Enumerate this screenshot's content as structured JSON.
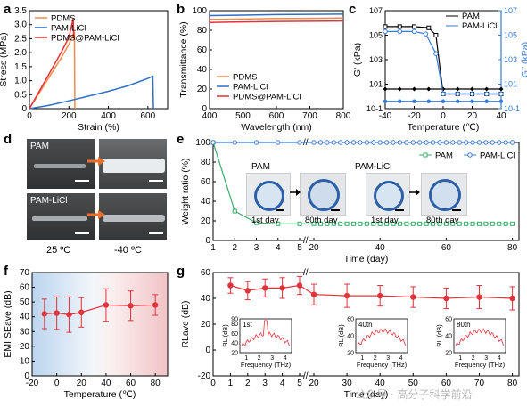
{
  "panels": {
    "a": "a",
    "b": "b",
    "c": "c",
    "d": "d",
    "e": "e",
    "f": "f",
    "g": "g"
  },
  "chart_data": [
    {
      "panel": "a",
      "type": "line",
      "xlabel": "Strain (%)",
      "ylabel": "Stress (MPa)",
      "xlim": [
        0,
        700
      ],
      "ylim": [
        0,
        3.5
      ],
      "xticks": [
        0,
        200,
        400,
        600
      ],
      "yticks": [
        0,
        0.5,
        1.0,
        1.5,
        2.0,
        2.5,
        3.0,
        3.5
      ],
      "ytick_labels": [
        "0",
        "0.5",
        "1.0",
        "1.5",
        "2.0",
        "2.5",
        "3.0",
        "3.5"
      ],
      "legend": [
        "PDMS",
        "PAM-LiCl",
        "PDMS@PAM-LiCl"
      ],
      "legend_position": "top-left",
      "series": [
        {
          "name": "PDMS",
          "color": "#f08c4a",
          "points": [
            [
              0,
              0
            ],
            [
              40,
              0.45
            ],
            [
              80,
              0.9
            ],
            [
              120,
              1.35
            ],
            [
              160,
              1.8
            ],
            [
              200,
              2.3
            ],
            [
              228,
              2.75
            ],
            [
              230,
              0
            ]
          ]
        },
        {
          "name": "PAM-LiCl",
          "color": "#2f6fc6",
          "points": [
            [
              0,
              0
            ],
            [
              100,
              0.12
            ],
            [
              200,
              0.28
            ],
            [
              300,
              0.45
            ],
            [
              400,
              0.62
            ],
            [
              500,
              0.82
            ],
            [
              600,
              1.08
            ],
            [
              625,
              1.16
            ],
            [
              628,
              0
            ]
          ]
        },
        {
          "name": "PDMS@PAM-LiCl",
          "color": "#e0343b",
          "points": [
            [
              0,
              0
            ],
            [
              40,
              0.5
            ],
            [
              80,
              1.0
            ],
            [
              120,
              1.5
            ],
            [
              160,
              2.0
            ],
            [
              200,
              2.55
            ],
            [
              222,
              3.22
            ],
            [
              224,
              2.5
            ]
          ]
        }
      ]
    },
    {
      "panel": "b",
      "type": "line",
      "xlabel": "Wavelength (nm)",
      "ylabel": "Transmittance (%)",
      "xlim": [
        400,
        800
      ],
      "ylim": [
        0,
        100
      ],
      "xticks": [
        400,
        500,
        600,
        700,
        800
      ],
      "yticks": [
        0,
        20,
        40,
        60,
        80,
        100
      ],
      "legend": [
        "PDMS",
        "PAM-LiCl",
        "PDMS@PAM-LiCl"
      ],
      "legend_position": "bottom-left",
      "series": [
        {
          "name": "PDMS",
          "color": "#f08c4a",
          "x": [
            400,
            500,
            600,
            700,
            800
          ],
          "y": [
            91,
            91.5,
            92,
            92.2,
            92.5
          ]
        },
        {
          "name": "PAM-LiCl",
          "color": "#2f6fc6",
          "x": [
            400,
            500,
            600,
            700,
            800
          ],
          "y": [
            95,
            95.5,
            96,
            96.3,
            96.5
          ]
        },
        {
          "name": "PDMS@PAM-LiCl",
          "color": "#e0343b",
          "x": [
            400,
            500,
            600,
            700,
            800
          ],
          "y": [
            88,
            88.5,
            89,
            89.2,
            89.5
          ]
        }
      ]
    },
    {
      "panel": "c",
      "type": "line",
      "xlabel": "Temperature (℃)",
      "ylabel": "G' (kPa)",
      "ylabel_right": "G'' (kPa)",
      "xlim": [
        -40,
        40
      ],
      "ylim_log": [
        -1,
        7
      ],
      "yscale": "log",
      "xticks": [
        -40,
        -20,
        0,
        20,
        40
      ],
      "yticks_left": [
        "10-1",
        "101",
        "103",
        "105",
        "107"
      ],
      "yticks_right": [
        "10-1",
        "101",
        "103",
        "105",
        "107"
      ],
      "legend": [
        "PAM",
        "PAM-LiCl"
      ],
      "legend_position": "top-right",
      "series": [
        {
          "name": "PAM G'",
          "color": "#000000",
          "marker": "open-square",
          "x": [
            -40,
            -30,
            -20,
            -10,
            -5,
            0,
            10,
            20,
            30,
            40
          ],
          "logy": [
            5.7,
            5.7,
            5.7,
            5.6,
            5.0,
            0.2,
            0.2,
            0.2,
            0.2,
            0.2
          ]
        },
        {
          "name": "PAM G''",
          "color": "#000000",
          "marker": "filled-diamond",
          "x": [
            -40,
            -30,
            -20,
            -10,
            0,
            10,
            20,
            30,
            40
          ],
          "logy": [
            0.6,
            0.6,
            0.6,
            0.6,
            0.6,
            0.6,
            0.6,
            0.6,
            0.6
          ]
        },
        {
          "name": "PAM-LiCl G'",
          "color": "#3a7bd5",
          "marker": "open-circle",
          "x": [
            -40,
            -30,
            -20,
            -12,
            -5,
            0,
            10,
            20,
            30,
            40
          ],
          "logy": [
            5.3,
            5.3,
            5.3,
            5.1,
            3.5,
            0.2,
            0.2,
            0.2,
            0.2,
            0.2
          ]
        },
        {
          "name": "PAM-LiCl G''",
          "color": "#3a7bd5",
          "marker": "filled-circle",
          "x": [
            -40,
            -30,
            -20,
            -10,
            0,
            10,
            20,
            30,
            40
          ],
          "logy": [
            -0.4,
            -0.4,
            -0.4,
            -0.4,
            -0.4,
            -0.4,
            -0.4,
            -0.4,
            -0.4
          ]
        }
      ]
    },
    {
      "panel": "e",
      "type": "line",
      "xlabel": "Time (day)",
      "ylabel": "Weight ratio (%)",
      "ylim": [
        0,
        100
      ],
      "yticks": [
        0,
        20,
        40,
        60,
        80,
        100
      ],
      "xticks_left": [
        1,
        2,
        3,
        4,
        5
      ],
      "xticks_right": [
        20,
        40,
        60,
        80
      ],
      "legend": [
        "PAM",
        "PAM-LiCl"
      ],
      "legend_position": "top-right",
      "series": [
        {
          "name": "PAM",
          "color": "#3aaa6a",
          "x": [
            1,
            2,
            3,
            4,
            5,
            20,
            30,
            40,
            50,
            60,
            70,
            80
          ],
          "y": [
            100,
            30,
            18,
            17,
            17,
            17,
            17,
            17,
            17,
            17,
            17,
            17
          ]
        },
        {
          "name": "PAM-LiCl",
          "color": "#3a7bd5",
          "x": [
            1,
            2,
            3,
            4,
            5,
            20,
            30,
            40,
            50,
            60,
            70,
            80
          ],
          "y": [
            100,
            100,
            100,
            100,
            100,
            100,
            100,
            100,
            100,
            100,
            100,
            100
          ]
        }
      ]
    },
    {
      "panel": "f",
      "type": "scatter",
      "xlabel": "Temperature (℃)",
      "ylabel": "EMI SEave (dB)",
      "xlim": [
        -20,
        90
      ],
      "ylim": [
        0,
        70
      ],
      "xticks": [
        -20,
        0,
        20,
        40,
        60,
        80
      ],
      "yticks": [
        0,
        10,
        20,
        30,
        40,
        50,
        60,
        70
      ],
      "series": [
        {
          "name": "EMI SE",
          "color": "#e0343b",
          "x": [
            -10,
            0,
            10,
            20,
            40,
            60,
            80
          ],
          "y": [
            42,
            42.5,
            41.5,
            43,
            48,
            47.5,
            48
          ],
          "err": [
            10,
            11,
            12,
            10,
            11,
            10,
            7
          ]
        }
      ]
    },
    {
      "panel": "g",
      "type": "scatter",
      "xlabel": "Time (day)",
      "ylabel": "RLave (dB)",
      "ylim": [
        -20,
        60
      ],
      "yticks": [
        -20,
        0,
        20,
        40,
        60
      ],
      "xticks_left": [
        0,
        1,
        2,
        3,
        4,
        5
      ],
      "xticks_right": [
        20,
        30,
        40,
        50,
        60,
        70,
        80
      ],
      "series": [
        {
          "name": "RL",
          "color": "#e0343b",
          "x": [
            1,
            2,
            3,
            4,
            5,
            20,
            30,
            40,
            50,
            60,
            70,
            80
          ],
          "y": [
            50,
            46,
            48,
            48,
            50,
            43,
            42,
            42,
            41,
            40,
            41,
            40
          ],
          "err": [
            6,
            7,
            7,
            8,
            7,
            8,
            9,
            8,
            8,
            8,
            9,
            9
          ]
        }
      ],
      "insets": [
        {
          "label": "1st",
          "xlabel": "Frequency (THz)",
          "ylabel": "RL (dB)",
          "ylim": [
            20,
            90
          ],
          "yticks": [
            20,
            40,
            60,
            80,
            90
          ],
          "xticks": [
            1,
            2,
            3,
            4
          ]
        },
        {
          "label": "40th",
          "xlabel": "Frequency (THz)",
          "ylabel": "RL (dB)",
          "ylim": [
            20,
            60
          ],
          "yticks": [
            20,
            40,
            60
          ],
          "xticks": [
            1,
            2,
            3,
            4
          ]
        },
        {
          "label": "80th",
          "xlabel": "Frequency (THz)",
          "ylabel": "RL (dB)",
          "ylim": [
            20,
            60
          ],
          "yticks": [
            20,
            40,
            60
          ],
          "xticks": [
            1,
            2,
            3,
            4
          ]
        }
      ]
    }
  ],
  "photos_d": {
    "pam": "PAM",
    "pamlicl": "PAM-LiCl",
    "temp_left": "25 ºC",
    "temp_right": "-40 ºC"
  },
  "photos_e": {
    "pam_label": "PAM",
    "pamlicl_label": "PAM-LiCl",
    "day_start": "1st day",
    "day_end": "80th day"
  },
  "watermark": "公众号 · 高分子科学前沿"
}
